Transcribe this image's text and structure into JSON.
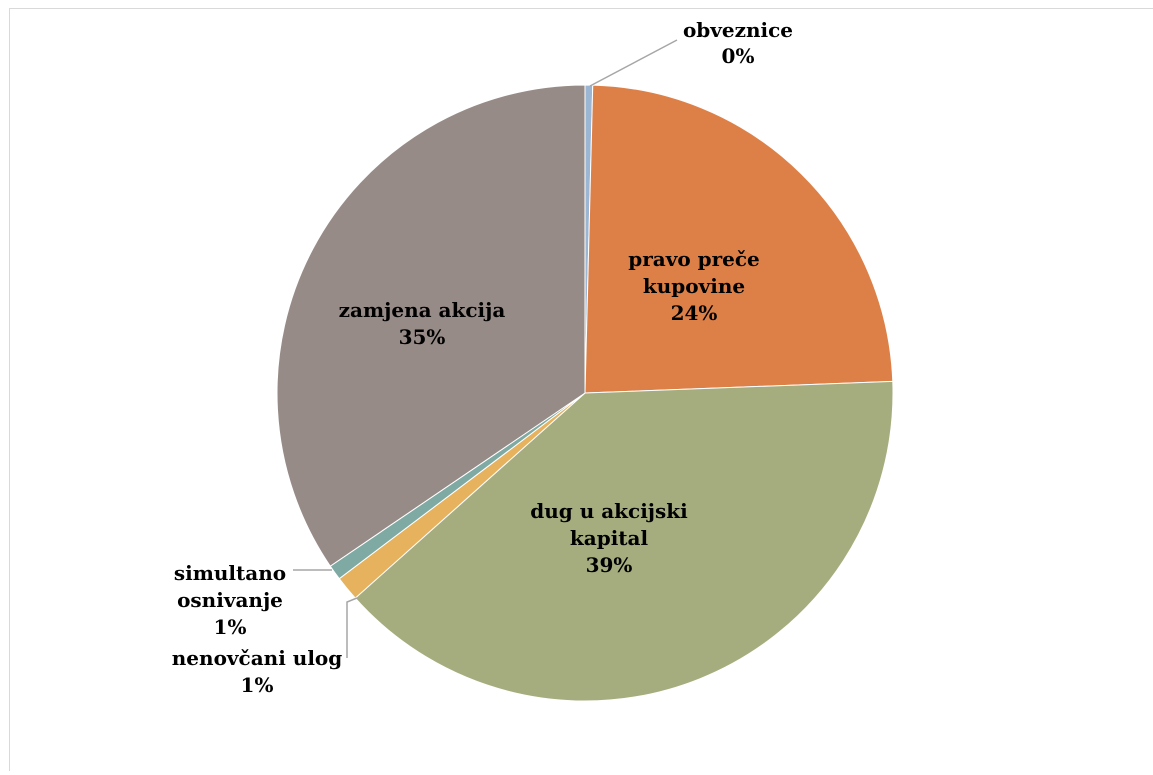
{
  "title": "",
  "colors": {
    "obveznice": "#9bb6d3",
    "pravo_prece": "#dd8048",
    "dug": "#a5ad7f",
    "nenovcani": "#e6b25d",
    "simultano": "#7faaa3",
    "zamjena": "#968b87",
    "leader": "#a6a6a6"
  },
  "chart_data": {
    "type": "pie",
    "start_angle_deg": 0,
    "direction": "clockwise",
    "legend": "none",
    "slices": [
      {
        "name": "obveznice",
        "value": 0.4,
        "label_lines": [
          "obveznice",
          "0%"
        ],
        "color": "#9bb6d3"
      },
      {
        "name": "pravo preče kupovine",
        "value": 24,
        "label_lines": [
          "pravo preče",
          "kupovine",
          "24%"
        ],
        "color": "#dd8048"
      },
      {
        "name": "dug u akcijski kapital",
        "value": 39,
        "label_lines": [
          "dug u akcijski",
          "kapital",
          "39%"
        ],
        "color": "#a5ad7f"
      },
      {
        "name": "nenovčani ulog",
        "value": 1.3,
        "label_lines": [
          "nenovčani ulog",
          "1%"
        ],
        "color": "#e6b25d"
      },
      {
        "name": "simultano osnivanje",
        "value": 0.8,
        "label_lines": [
          "simultano",
          "osnivanje",
          "1%"
        ],
        "color": "#7faaa3"
      },
      {
        "name": "zamjena akcija",
        "value": 34.5,
        "label_lines": [
          "zamjena akcija",
          "35%"
        ],
        "color": "#968b87"
      }
    ]
  }
}
